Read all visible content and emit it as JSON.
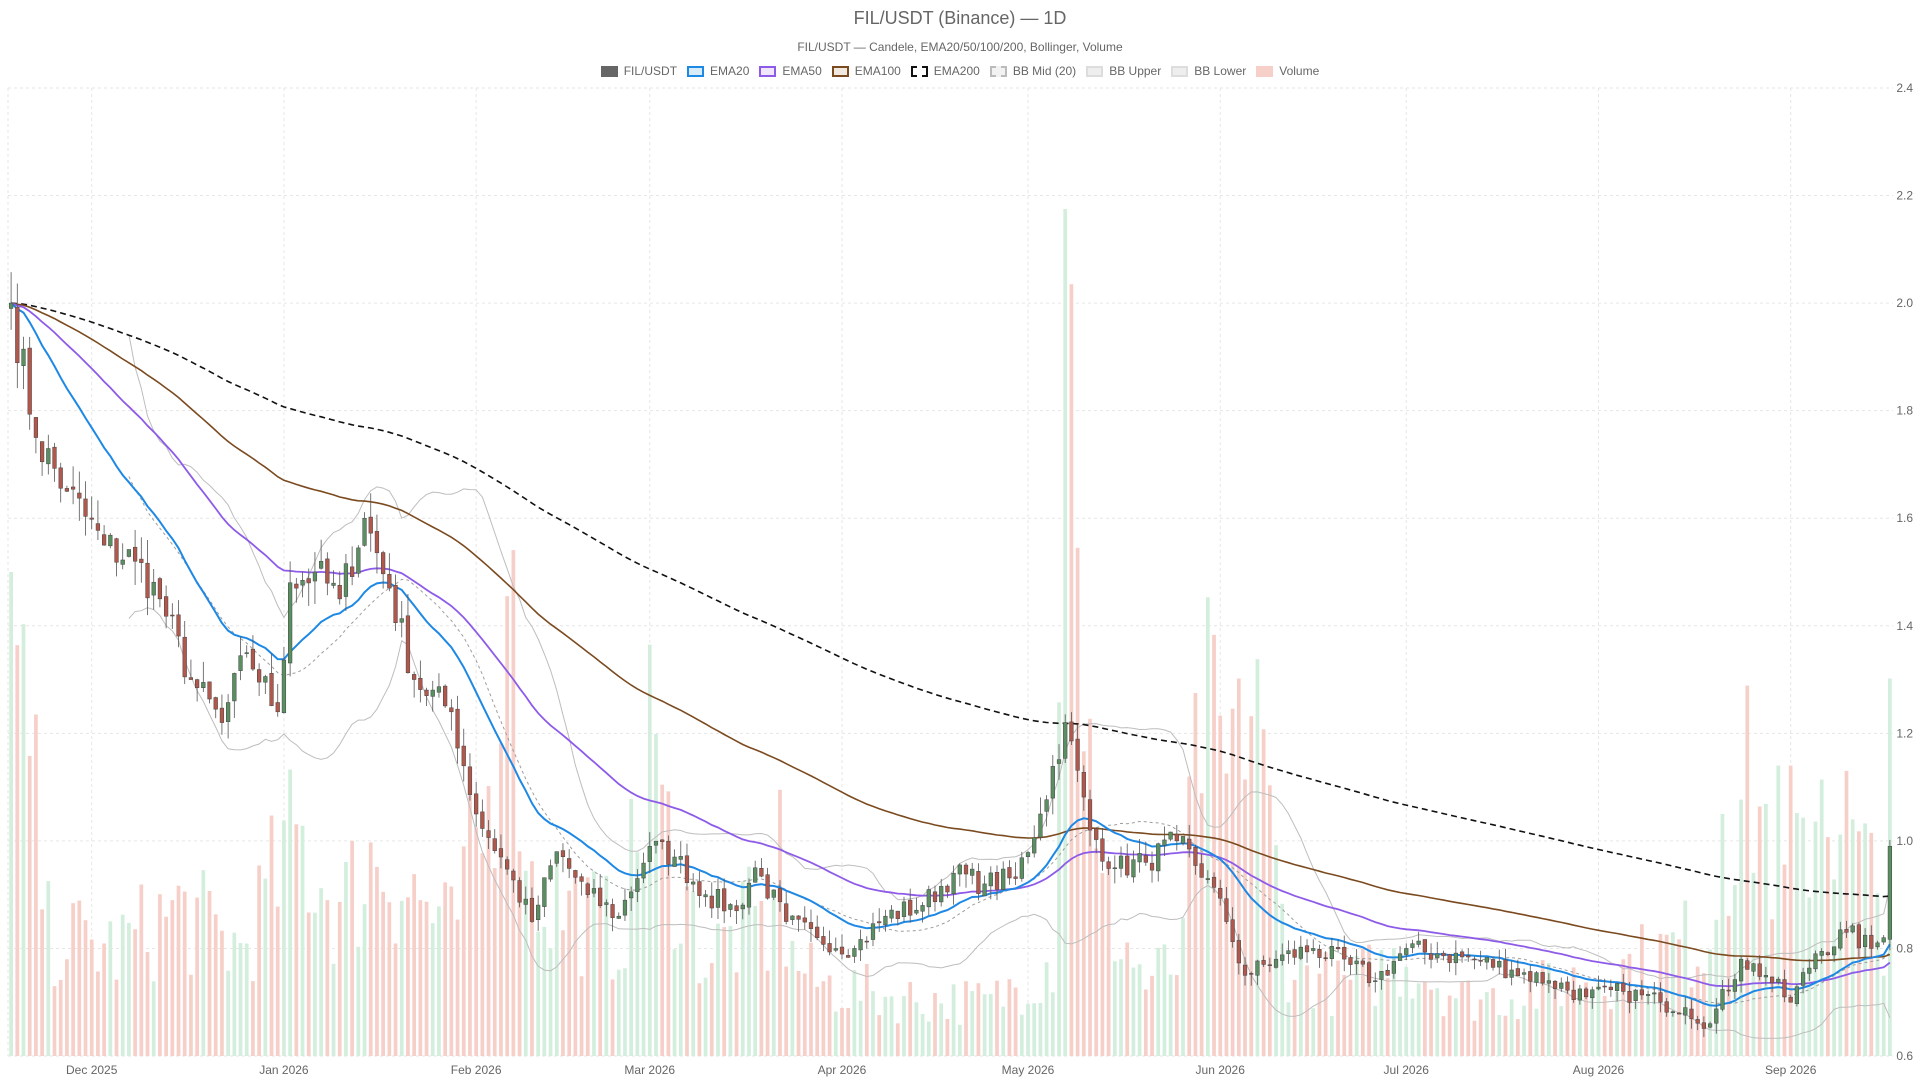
{
  "title": "FIL/USDT (Binance) — 1D",
  "subtitle": "FIL/USDT — Candele, EMA20/50/100/200, Bollinger, Volume",
  "legend": [
    {
      "label": "FIL/USDT",
      "icon": "solid-swatch",
      "fill": "#666666",
      "stroke": "#666666",
      "dashed": false
    },
    {
      "label": "EMA20",
      "icon": "line-swatch",
      "fill": "#d7ebf9",
      "stroke": "#1e88e5",
      "dashed": false
    },
    {
      "label": "EMA50",
      "icon": "line-swatch",
      "fill": "#efe6fb",
      "stroke": "#8e5be8",
      "dashed": false
    },
    {
      "label": "EMA100",
      "icon": "line-swatch",
      "fill": "#f1e8df",
      "stroke": "#7b4a1f",
      "dashed": false
    },
    {
      "label": "EMA200",
      "icon": "line-swatch",
      "fill": "#ffffff",
      "stroke": "#111111",
      "dashed": true
    },
    {
      "label": "BB Mid (20)",
      "icon": "line-swatch",
      "fill": "#f2f2f2",
      "stroke": "#bbbbbb",
      "dashed": true
    },
    {
      "label": "BB Upper",
      "icon": "line-swatch",
      "fill": "#eeeeee",
      "stroke": "#dddddd",
      "dashed": false
    },
    {
      "label": "BB Lower",
      "icon": "line-swatch",
      "fill": "#eeeeee",
      "stroke": "#dddddd",
      "dashed": false
    },
    {
      "label": "Volume",
      "icon": "solid-swatch",
      "fill": "#f7cfc9",
      "stroke": "#f7cfc9",
      "dashed": false
    }
  ],
  "colors": {
    "up": "#5a8f62",
    "down": "#b1574b",
    "volume_up": "#d3eedd",
    "volume_down": "#f7cfc9",
    "ema20": "#1e88e5",
    "ema50": "#8e5be8",
    "ema100": "#7b4a1f",
    "ema200": "#111111",
    "bb_mid": "#9e9e9e",
    "bb_band": "#bdbdbd",
    "grid": "#e6e6e6"
  },
  "chart_data": {
    "type": "candlestick",
    "symbol": "FIL/USDT",
    "exchange": "Binance",
    "timeframe": "1D",
    "grid": true,
    "legend_position": "top-center",
    "ylim": [
      0.6,
      2.4
    ],
    "y_ticks": [
      "0.6",
      "0.8",
      "1.0",
      "1.2",
      "1.4",
      "1.6",
      "1.8",
      "2.0",
      "2.2",
      "2.4"
    ],
    "x_range": [
      "2025-11-18",
      "2026-09-17"
    ],
    "x_ticks": [
      {
        "date": "2025-12-01",
        "label": "Dec 2025"
      },
      {
        "date": "2026-01-01",
        "label": "Jan 2026"
      },
      {
        "date": "2026-02-01",
        "label": "Feb 2026"
      },
      {
        "date": "2026-03-01",
        "label": "Mar 2026"
      },
      {
        "date": "2026-04-01",
        "label": "Apr 2026"
      },
      {
        "date": "2026-05-01",
        "label": "May 2026"
      },
      {
        "date": "2026-06-01",
        "label": "Jun 2026"
      },
      {
        "date": "2026-07-01",
        "label": "Jul 2026"
      },
      {
        "date": "2026-08-01",
        "label": "Aug 2026"
      },
      {
        "date": "2026-09-01",
        "label": "Sep 2026"
      }
    ],
    "close_anchors": [
      [
        "2025-11-18",
        2.0
      ],
      [
        "2025-11-22",
        1.75
      ],
      [
        "2025-11-27",
        1.65
      ],
      [
        "2025-12-03",
        1.55
      ],
      [
        "2025-12-08",
        1.52
      ],
      [
        "2025-12-12",
        1.45
      ],
      [
        "2025-12-17",
        1.3
      ],
      [
        "2025-12-22",
        1.22
      ],
      [
        "2025-12-26",
        1.35
      ],
      [
        "2025-12-31",
        1.24
      ],
      [
        "2026-01-02",
        1.48
      ],
      [
        "2026-01-06",
        1.5
      ],
      [
        "2026-01-10",
        1.45
      ],
      [
        "2026-01-14",
        1.6
      ],
      [
        "2026-01-18",
        1.47
      ],
      [
        "2026-01-22",
        1.3
      ],
      [
        "2026-01-28",
        1.24
      ],
      [
        "2026-02-01",
        1.05
      ],
      [
        "2026-02-05",
        0.97
      ],
      [
        "2026-02-10",
        0.85
      ],
      [
        "2026-02-14",
        0.98
      ],
      [
        "2026-02-19",
        0.9
      ],
      [
        "2026-02-24",
        0.86
      ],
      [
        "2026-03-01",
        0.99
      ],
      [
        "2026-03-05",
        0.97
      ],
      [
        "2026-03-10",
        0.9
      ],
      [
        "2026-03-15",
        0.87
      ],
      [
        "2026-03-18",
        0.95
      ],
      [
        "2026-03-23",
        0.85
      ],
      [
        "2026-03-28",
        0.82
      ],
      [
        "2026-04-03",
        0.8
      ],
      [
        "2026-04-08",
        0.86
      ],
      [
        "2026-04-14",
        0.88
      ],
      [
        "2026-04-19",
        0.94
      ],
      [
        "2026-04-24",
        0.92
      ],
      [
        "2026-04-29",
        0.93
      ],
      [
        "2026-05-03",
        1.05
      ],
      [
        "2026-05-07",
        1.22
      ],
      [
        "2026-05-11",
        1.02
      ],
      [
        "2026-05-15",
        0.95
      ],
      [
        "2026-05-20",
        0.96
      ],
      [
        "2026-05-25",
        1.0
      ],
      [
        "2026-05-30",
        0.93
      ],
      [
        "2026-06-02",
        0.85
      ],
      [
        "2026-06-05",
        0.75
      ],
      [
        "2026-06-10",
        0.78
      ],
      [
        "2026-06-16",
        0.8
      ],
      [
        "2026-06-22",
        0.77
      ],
      [
        "2026-06-26",
        0.74
      ],
      [
        "2026-07-01",
        0.8
      ],
      [
        "2026-07-06",
        0.79
      ],
      [
        "2026-07-12",
        0.78
      ],
      [
        "2026-07-18",
        0.76
      ],
      [
        "2026-07-24",
        0.74
      ],
      [
        "2026-07-30",
        0.71
      ],
      [
        "2026-08-05",
        0.72
      ],
      [
        "2026-08-11",
        0.7
      ],
      [
        "2026-08-15",
        0.69
      ],
      [
        "2026-08-19",
        0.66
      ],
      [
        "2026-08-24",
        0.78
      ],
      [
        "2026-08-28",
        0.75
      ],
      [
        "2026-09-01",
        0.7
      ],
      [
        "2026-09-05",
        0.79
      ],
      [
        "2026-09-10",
        0.83
      ],
      [
        "2026-09-14",
        0.8
      ],
      [
        "2026-09-16",
        0.82
      ],
      [
        "2026-09-17",
        0.99
      ]
    ],
    "volume_ylim": [
      0,
      2.0
    ],
    "volume_anchors": [
      [
        "2025-11-18",
        1.0
      ],
      [
        "2025-11-19",
        0.7
      ],
      [
        "2025-11-21",
        0.62
      ],
      [
        "2025-11-24",
        0.25
      ],
      [
        "2025-12-05",
        0.22
      ],
      [
        "2025-12-15",
        0.3
      ],
      [
        "2025-12-25",
        0.22
      ],
      [
        "2026-01-03",
        0.45
      ],
      [
        "2026-01-10",
        0.3
      ],
      [
        "2026-01-16",
        0.42
      ],
      [
        "2026-01-28",
        0.25
      ],
      [
        "2026-02-03",
        0.5
      ],
      [
        "2026-02-06",
        0.95
      ],
      [
        "2026-02-10",
        0.35
      ],
      [
        "2026-02-24",
        0.25
      ],
      [
        "2026-03-01",
        0.55
      ],
      [
        "2026-03-10",
        0.2
      ],
      [
        "2026-03-18",
        0.28
      ],
      [
        "2026-03-28",
        0.15
      ],
      [
        "2026-04-10",
        0.12
      ],
      [
        "2026-04-25",
        0.11
      ],
      [
        "2026-05-05",
        0.2
      ],
      [
        "2026-05-07",
        1.75
      ],
      [
        "2026-05-09",
        1.05
      ],
      [
        "2026-05-12",
        0.35
      ],
      [
        "2026-05-20",
        0.15
      ],
      [
        "2026-05-26",
        0.2
      ],
      [
        "2026-05-28",
        0.75
      ],
      [
        "2026-06-02",
        0.55
      ],
      [
        "2026-06-05",
        0.8
      ],
      [
        "2026-06-12",
        0.2
      ],
      [
        "2026-06-20",
        0.14
      ],
      [
        "2026-07-01",
        0.2
      ],
      [
        "2026-07-10",
        0.12
      ],
      [
        "2026-07-20",
        0.13
      ],
      [
        "2026-08-05",
        0.18
      ],
      [
        "2026-08-19",
        0.25
      ],
      [
        "2026-08-22",
        0.5
      ],
      [
        "2026-08-26",
        0.55
      ],
      [
        "2026-09-01",
        0.3
      ],
      [
        "2026-09-06",
        0.6
      ],
      [
        "2026-09-12",
        0.4
      ],
      [
        "2026-09-16",
        0.3
      ],
      [
        "2026-09-17",
        0.78
      ]
    ],
    "volume_spikes": [
      [
        "2025-11-18",
        1.0
      ],
      [
        "2025-11-21",
        0.62
      ],
      [
        "2026-02-06",
        0.95
      ],
      [
        "2026-03-01",
        0.85
      ],
      [
        "2026-03-22",
        0.55
      ],
      [
        "2026-05-07",
        1.75
      ],
      [
        "2026-05-09",
        1.05
      ],
      [
        "2026-05-28",
        0.75
      ],
      [
        "2026-06-04",
        0.78
      ],
      [
        "2026-06-07",
        0.82
      ],
      [
        "2026-08-21",
        0.5
      ],
      [
        "2026-08-30",
        0.6
      ],
      [
        "2026-09-01",
        0.6
      ],
      [
        "2026-09-17",
        0.78
      ]
    ],
    "bollinger_period": 20,
    "bollinger_std": 2,
    "ema_periods": [
      20,
      50,
      100,
      200
    ]
  }
}
